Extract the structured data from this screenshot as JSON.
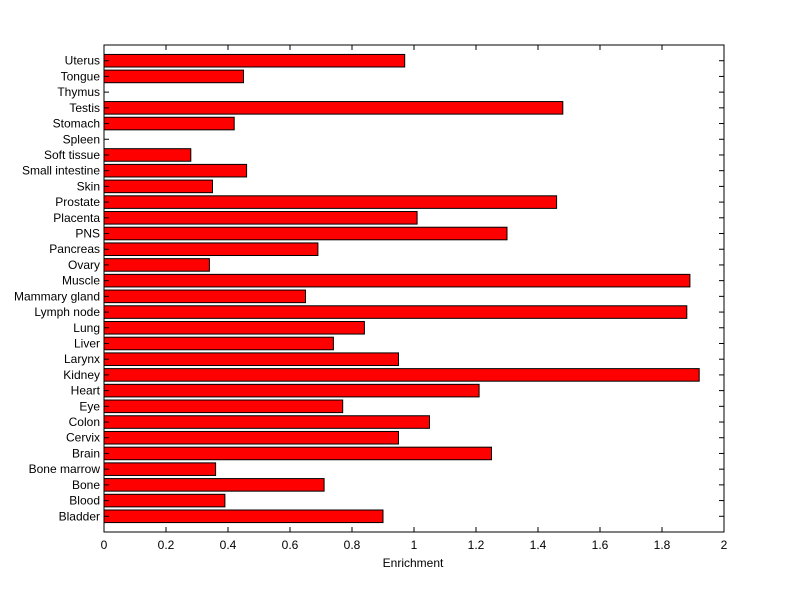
{
  "chart_data": {
    "type": "bar",
    "orientation": "horizontal",
    "xlabel": "Enrichment",
    "ylabel": "",
    "title": "",
    "xlim": [
      0,
      2
    ],
    "x_ticks": [
      "0",
      "0.2",
      "0.4",
      "0.6",
      "0.8",
      "1",
      "1.2",
      "1.4",
      "1.6",
      "1.8",
      "2"
    ],
    "grid": false,
    "bar_color": "#ff0000",
    "bar_edge_color": "#000000",
    "categories": [
      "Uterus",
      "Tongue",
      "Thymus",
      "Testis",
      "Stomach",
      "Spleen",
      "Soft tissue",
      "Small intestine",
      "Skin",
      "Prostate",
      "Placenta",
      "PNS",
      "Pancreas",
      "Ovary",
      "Muscle",
      "Mammary gland",
      "Lymph node",
      "Lung",
      "Liver",
      "Larynx",
      "Kidney",
      "Heart",
      "Eye",
      "Colon",
      "Cervix",
      "Brain",
      "Bone marrow",
      "Bone",
      "Blood",
      "Bladder"
    ],
    "values": [
      0.97,
      0.45,
      0,
      1.48,
      0.42,
      0,
      0.28,
      0.46,
      0.35,
      1.46,
      1.01,
      1.3,
      0.69,
      0.34,
      1.89,
      0.65,
      1.88,
      0.84,
      0.74,
      0.95,
      1.92,
      1.21,
      0.77,
      1.05,
      0.95,
      1.25,
      0.36,
      0.71,
      0.39,
      0.9
    ]
  }
}
